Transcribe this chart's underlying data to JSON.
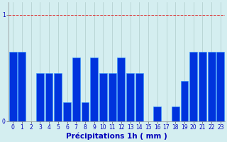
{
  "categories": [
    0,
    1,
    2,
    3,
    4,
    5,
    6,
    7,
    8,
    9,
    10,
    11,
    12,
    13,
    14,
    15,
    16,
    17,
    18,
    19,
    20,
    21,
    22,
    23
  ],
  "values": [
    0.65,
    0.65,
    0.0,
    0.45,
    0.45,
    0.45,
    0.18,
    0.6,
    0.18,
    0.6,
    0.45,
    0.45,
    0.6,
    0.45,
    0.45,
    0.0,
    0.14,
    0.0,
    0.14,
    0.38,
    0.65,
    0.65,
    0.65,
    0.65
  ],
  "bar_color": "#0033dd",
  "bar_edge_color": "#3399ff",
  "background_color": "#d4eef0",
  "grid_color": "#b0cccc",
  "xlabel": "Précipitations 1h ( mm )",
  "xlabel_color": "#0000bb",
  "xlabel_fontsize": 7.5,
  "tick_color": "#0000bb",
  "tick_fontsize": 5.5,
  "ytick_labels": [
    "0",
    "1"
  ],
  "ytick_values": [
    0,
    1
  ],
  "ylim": [
    0,
    1.12
  ],
  "xlim": [
    -0.5,
    23.5
  ],
  "grid_hline_y": 1.0,
  "grid_line_color": "#dd2222"
}
